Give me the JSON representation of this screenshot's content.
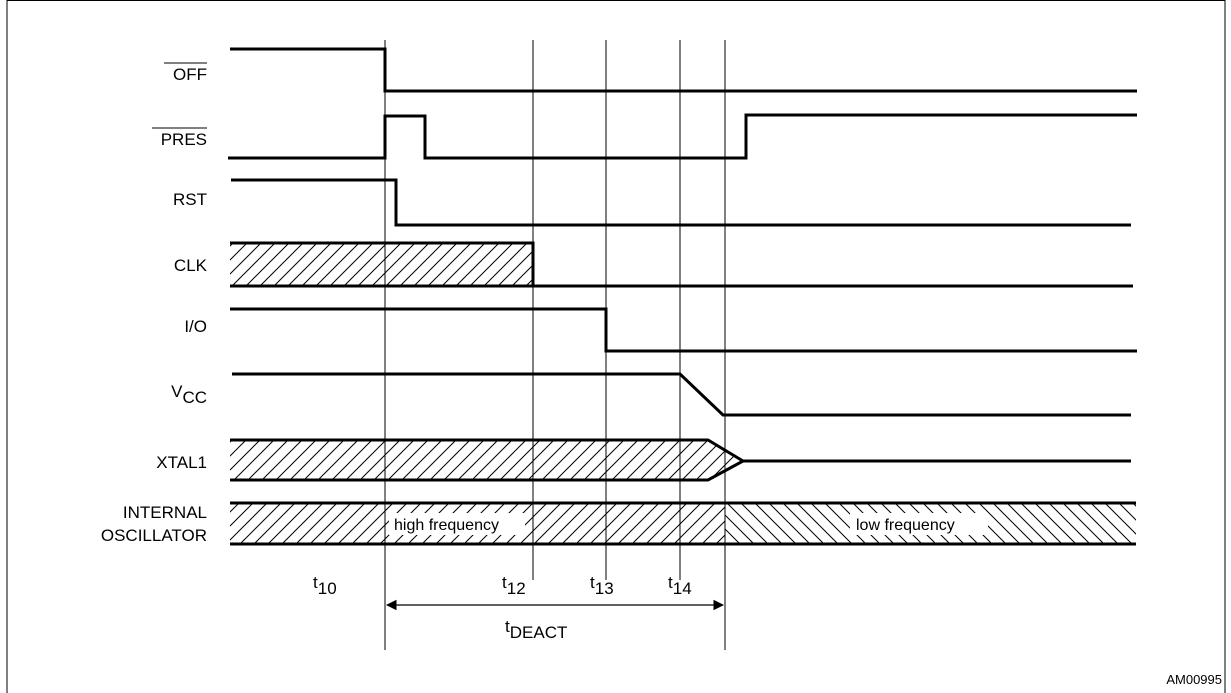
{
  "signals": {
    "off": "OFF",
    "pres": "PRES",
    "rst": "RST",
    "clk": "CLK",
    "io": "I/O",
    "vcc_main": "V",
    "vcc_sub": "CC",
    "xtal1": "XTAL1",
    "osc_line1": "INTERNAL",
    "osc_line2": "OSCILLATOR"
  },
  "bands": {
    "high": "high frequency",
    "low": "low frequency"
  },
  "timing": {
    "t10_main": "t",
    "t10_sub": "10",
    "t12_main": "t",
    "t12_sub": "12",
    "t13_main": "t",
    "t13_sub": "13",
    "t14_main": "t",
    "t14_sub": "14",
    "tdeact_main": "t",
    "tdeact_sub": "DEACT"
  },
  "figure_id": "AM00995"
}
